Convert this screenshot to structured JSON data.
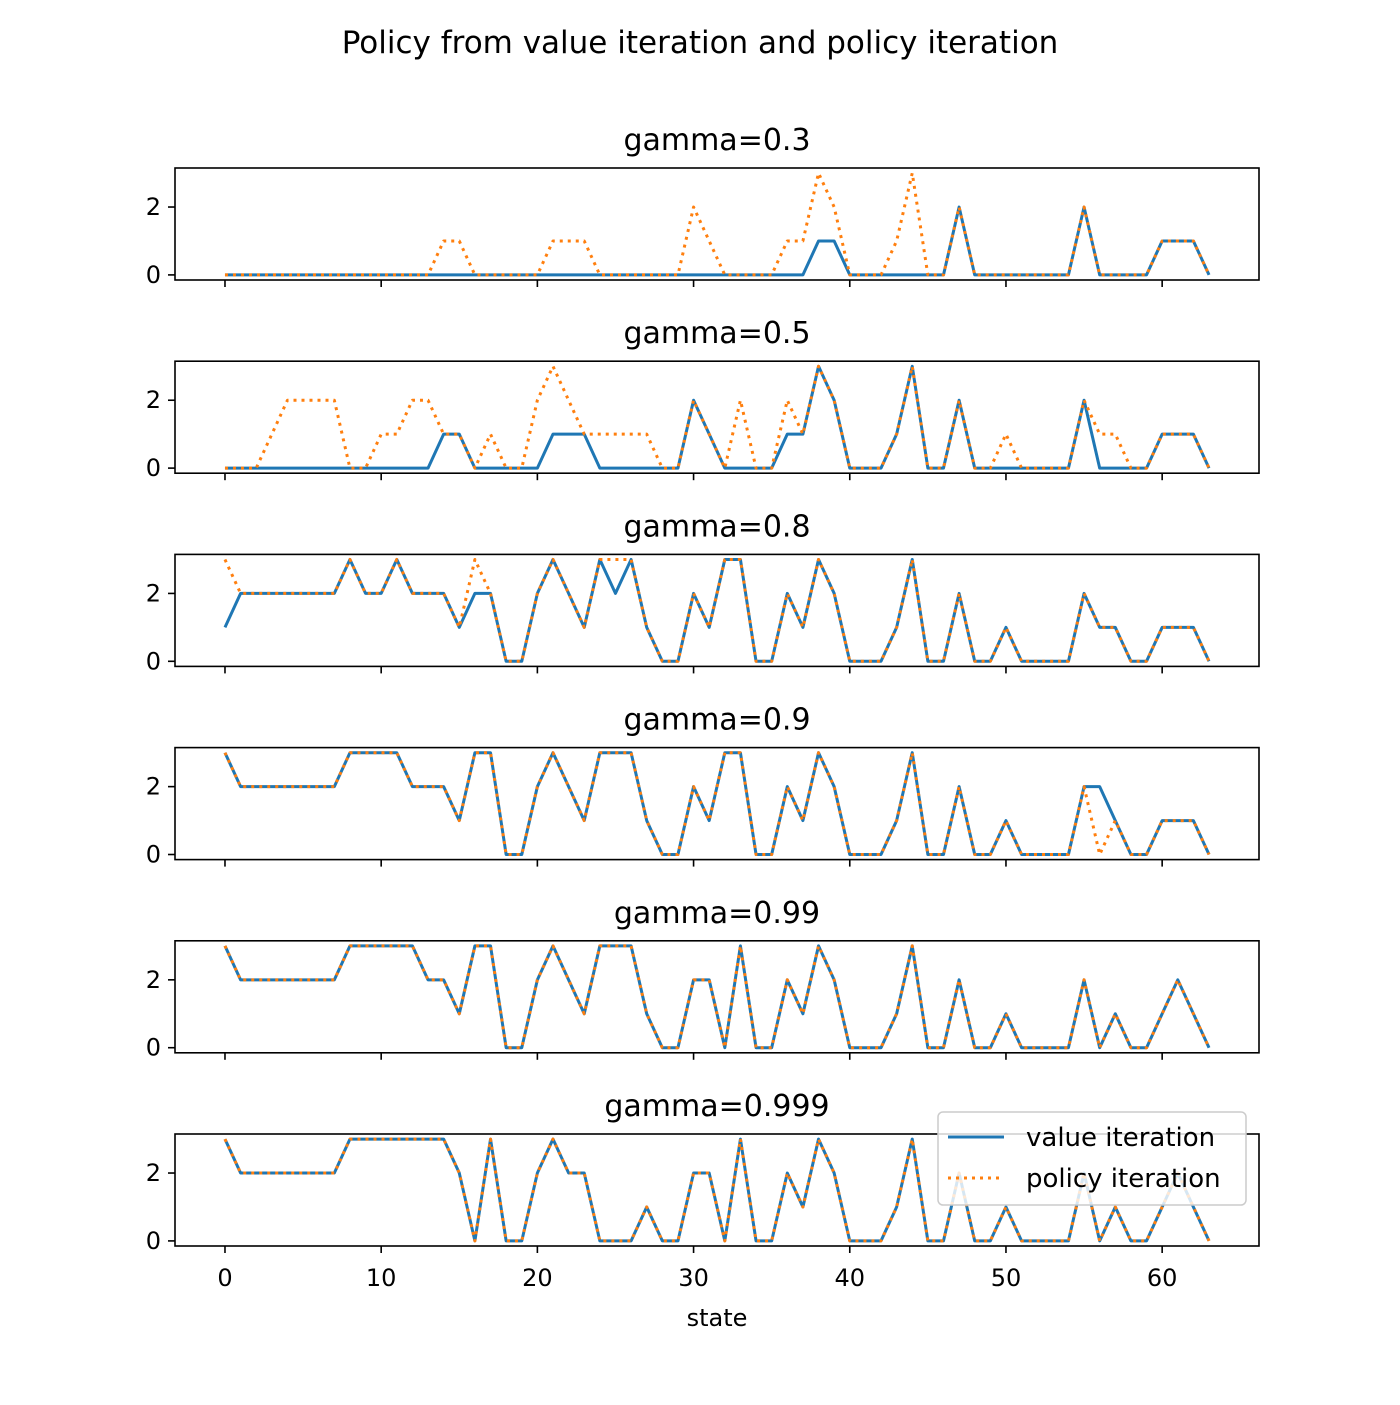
{
  "chart_data": {
    "type": "line",
    "title": "Policy from value iteration and policy iteration",
    "xlabel": "state",
    "ylabel": "",
    "x": [
      0,
      1,
      2,
      3,
      4,
      5,
      6,
      7,
      8,
      9,
      10,
      11,
      12,
      13,
      14,
      15,
      16,
      17,
      18,
      19,
      20,
      21,
      22,
      23,
      24,
      25,
      26,
      27,
      28,
      29,
      30,
      31,
      32,
      33,
      34,
      35,
      36,
      37,
      38,
      39,
      40,
      41,
      42,
      43,
      44,
      45,
      46,
      47,
      48,
      49,
      50,
      51,
      52,
      53,
      54,
      55,
      56,
      57,
      58,
      59,
      60,
      61,
      62,
      63
    ],
    "xlim": [
      -3.2,
      66.2
    ],
    "ylim": [
      -0.15,
      3.15
    ],
    "xticks": [
      0,
      10,
      20,
      30,
      40,
      50,
      60
    ],
    "xtick_labels": [
      "0",
      "10",
      "20",
      "30",
      "40",
      "50",
      "60"
    ],
    "yticks": [
      0,
      2
    ],
    "ytick_labels": [
      "0",
      "2"
    ],
    "colors": {
      "value_iteration": "#1f77b4",
      "policy_iteration": "#ff7f0e"
    },
    "legend": {
      "position": "lower-right",
      "entries": [
        "value iteration",
        "policy iteration"
      ]
    },
    "panels": [
      {
        "title": "gamma=0.3",
        "series": [
          {
            "name": "value iteration",
            "style": "solid",
            "values": [
              0,
              0,
              0,
              0,
              0,
              0,
              0,
              0,
              0,
              0,
              0,
              0,
              0,
              0,
              0,
              0,
              0,
              0,
              0,
              0,
              0,
              0,
              0,
              0,
              0,
              0,
              0,
              0,
              0,
              0,
              0,
              0,
              0,
              0,
              0,
              0,
              0,
              0,
              1,
              1,
              0,
              0,
              0,
              0,
              0,
              0,
              0,
              2,
              0,
              0,
              0,
              0,
              0,
              0,
              0,
              2,
              0,
              0,
              0,
              0,
              1,
              1,
              1,
              0
            ]
          },
          {
            "name": "policy iteration",
            "style": "dotted",
            "values": [
              0,
              0,
              0,
              0,
              0,
              0,
              0,
              0,
              0,
              0,
              0,
              0,
              0,
              0,
              1,
              1,
              0,
              0,
              0,
              0,
              0,
              1,
              1,
              1,
              0,
              0,
              0,
              0,
              0,
              0,
              2,
              1,
              0,
              0,
              0,
              0,
              1,
              1,
              3,
              2,
              0,
              0,
              0,
              1,
              3,
              0,
              0,
              2,
              0,
              0,
              0,
              0,
              0,
              0,
              0,
              2,
              0,
              0,
              0,
              0,
              1,
              1,
              1,
              0
            ]
          }
        ]
      },
      {
        "title": "gamma=0.5",
        "series": [
          {
            "name": "value iteration",
            "style": "solid",
            "values": [
              0,
              0,
              0,
              0,
              0,
              0,
              0,
              0,
              0,
              0,
              0,
              0,
              0,
              0,
              1,
              1,
              0,
              0,
              0,
              0,
              0,
              1,
              1,
              1,
              0,
              0,
              0,
              0,
              0,
              0,
              2,
              1,
              0,
              0,
              0,
              0,
              1,
              1,
              3,
              2,
              0,
              0,
              0,
              1,
              3,
              0,
              0,
              2,
              0,
              0,
              0,
              0,
              0,
              0,
              0,
              2,
              0,
              0,
              0,
              0,
              1,
              1,
              1,
              0
            ]
          },
          {
            "name": "policy iteration",
            "style": "dotted",
            "values": [
              0,
              0,
              0,
              1,
              2,
              2,
              2,
              2,
              0,
              0,
              1,
              1,
              2,
              2,
              1,
              1,
              0,
              1,
              0,
              0,
              2,
              3,
              2,
              1,
              1,
              1,
              1,
              1,
              0,
              0,
              2,
              1,
              0,
              2,
              0,
              0,
              2,
              1,
              3,
              2,
              0,
              0,
              0,
              1,
              3,
              0,
              0,
              2,
              0,
              0,
              1,
              0,
              0,
              0,
              0,
              2,
              1,
              1,
              0,
              0,
              1,
              1,
              1,
              0
            ]
          }
        ]
      },
      {
        "title": "gamma=0.8",
        "series": [
          {
            "name": "value iteration",
            "style": "solid",
            "values": [
              1,
              2,
              2,
              2,
              2,
              2,
              2,
              2,
              3,
              2,
              2,
              3,
              2,
              2,
              2,
              1,
              2,
              2,
              0,
              0,
              2,
              3,
              2,
              1,
              3,
              2,
              3,
              1,
              0,
              0,
              2,
              1,
              3,
              3,
              0,
              0,
              2,
              1,
              3,
              2,
              0,
              0,
              0,
              1,
              3,
              0,
              0,
              2,
              0,
              0,
              1,
              0,
              0,
              0,
              0,
              2,
              1,
              1,
              0,
              0,
              1,
              1,
              1,
              0
            ]
          },
          {
            "name": "policy iteration",
            "style": "dotted",
            "values": [
              3,
              2,
              2,
              2,
              2,
              2,
              2,
              2,
              3,
              2,
              2,
              3,
              2,
              2,
              2,
              1,
              3,
              2,
              0,
              0,
              2,
              3,
              2,
              1,
              3,
              3,
              3,
              1,
              0,
              0,
              2,
              1,
              3,
              3,
              0,
              0,
              2,
              1,
              3,
              2,
              0,
              0,
              0,
              1,
              3,
              0,
              0,
              2,
              0,
              0,
              1,
              0,
              0,
              0,
              0,
              2,
              1,
              1,
              0,
              0,
              1,
              1,
              1,
              0
            ]
          }
        ]
      },
      {
        "title": "gamma=0.9",
        "series": [
          {
            "name": "value iteration",
            "style": "solid",
            "values": [
              3,
              2,
              2,
              2,
              2,
              2,
              2,
              2,
              3,
              3,
              3,
              3,
              2,
              2,
              2,
              1,
              3,
              3,
              0,
              0,
              2,
              3,
              2,
              1,
              3,
              3,
              3,
              1,
              0,
              0,
              2,
              1,
              3,
              3,
              0,
              0,
              2,
              1,
              3,
              2,
              0,
              0,
              0,
              1,
              3,
              0,
              0,
              2,
              0,
              0,
              1,
              0,
              0,
              0,
              0,
              2,
              2,
              1,
              0,
              0,
              1,
              1,
              1,
              0
            ]
          },
          {
            "name": "policy iteration",
            "style": "dotted",
            "values": [
              3,
              2,
              2,
              2,
              2,
              2,
              2,
              2,
              3,
              3,
              3,
              3,
              2,
              2,
              2,
              1,
              3,
              3,
              0,
              0,
              2,
              3,
              2,
              1,
              3,
              3,
              3,
              1,
              0,
              0,
              2,
              1,
              3,
              3,
              0,
              0,
              2,
              1,
              3,
              2,
              0,
              0,
              0,
              1,
              3,
              0,
              0,
              2,
              0,
              0,
              1,
              0,
              0,
              0,
              0,
              2,
              0,
              1,
              0,
              0,
              1,
              1,
              1,
              0
            ]
          }
        ]
      },
      {
        "title": "gamma=0.99",
        "series": [
          {
            "name": "value iteration",
            "style": "solid",
            "values": [
              3,
              2,
              2,
              2,
              2,
              2,
              2,
              2,
              3,
              3,
              3,
              3,
              3,
              2,
              2,
              1,
              3,
              3,
              0,
              0,
              2,
              3,
              2,
              1,
              3,
              3,
              3,
              1,
              0,
              0,
              2,
              2,
              0,
              3,
              0,
              0,
              2,
              1,
              3,
              2,
              0,
              0,
              0,
              1,
              3,
              0,
              0,
              2,
              0,
              0,
              1,
              0,
              0,
              0,
              0,
              2,
              0,
              1,
              0,
              0,
              1,
              2,
              1,
              0
            ]
          },
          {
            "name": "policy iteration",
            "style": "dotted",
            "values": [
              3,
              2,
              2,
              2,
              2,
              2,
              2,
              2,
              3,
              3,
              3,
              3,
              3,
              2,
              2,
              1,
              3,
              3,
              0,
              0,
              2,
              3,
              2,
              1,
              3,
              3,
              3,
              1,
              0,
              0,
              2,
              2,
              0,
              3,
              0,
              0,
              2,
              1,
              3,
              2,
              0,
              0,
              0,
              1,
              3,
              0,
              0,
              2,
              0,
              0,
              1,
              0,
              0,
              0,
              0,
              2,
              0,
              1,
              0,
              0,
              1,
              2,
              1,
              0
            ]
          }
        ]
      },
      {
        "title": "gamma=0.999",
        "series": [
          {
            "name": "value iteration",
            "style": "solid",
            "values": [
              3,
              2,
              2,
              2,
              2,
              2,
              2,
              2,
              3,
              3,
              3,
              3,
              3,
              3,
              3,
              2,
              0,
              3,
              0,
              0,
              2,
              3,
              2,
              2,
              0,
              0,
              0,
              1,
              0,
              0,
              2,
              2,
              0,
              3,
              0,
              0,
              2,
              1,
              3,
              2,
              0,
              0,
              0,
              1,
              3,
              0,
              0,
              2,
              0,
              0,
              1,
              0,
              0,
              0,
              0,
              2,
              0,
              1,
              0,
              0,
              1,
              2,
              1,
              0
            ]
          },
          {
            "name": "policy iteration",
            "style": "dotted",
            "values": [
              3,
              2,
              2,
              2,
              2,
              2,
              2,
              2,
              3,
              3,
              3,
              3,
              3,
              3,
              3,
              2,
              0,
              3,
              0,
              0,
              2,
              3,
              2,
              2,
              0,
              0,
              0,
              1,
              0,
              0,
              2,
              2,
              0,
              3,
              0,
              0,
              2,
              1,
              3,
              2,
              0,
              0,
              0,
              1,
              3,
              0,
              0,
              2,
              0,
              0,
              1,
              0,
              0,
              0,
              0,
              2,
              0,
              1,
              0,
              0,
              1,
              2,
              1,
              0
            ]
          }
        ]
      }
    ]
  }
}
